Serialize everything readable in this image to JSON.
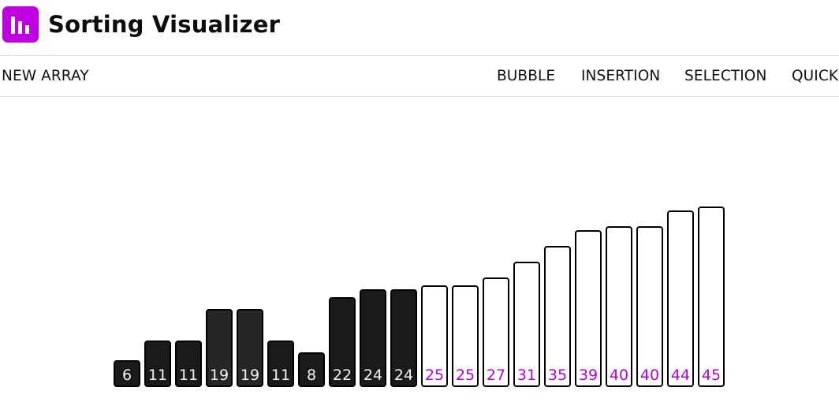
{
  "app": {
    "title": "Sorting Visualizer",
    "logo_icon": "bar-chart-icon",
    "accent_color": "#c000e0"
  },
  "toolbar": {
    "new_array_label": "NEW ARRAY",
    "algorithms": [
      "BUBBLE",
      "INSERTION",
      "SELECTION",
      "QUICK"
    ]
  },
  "array": {
    "values": [
      6,
      11,
      11,
      19,
      19,
      11,
      8,
      22,
      24,
      24,
      25,
      25,
      27,
      31,
      35,
      39,
      40,
      40,
      44,
      45
    ],
    "sorted_from_index": 10,
    "unsorted_color": "#1a1a1a",
    "sorted_color": "#ffffff",
    "sorted_label_color": "#b800d8"
  }
}
